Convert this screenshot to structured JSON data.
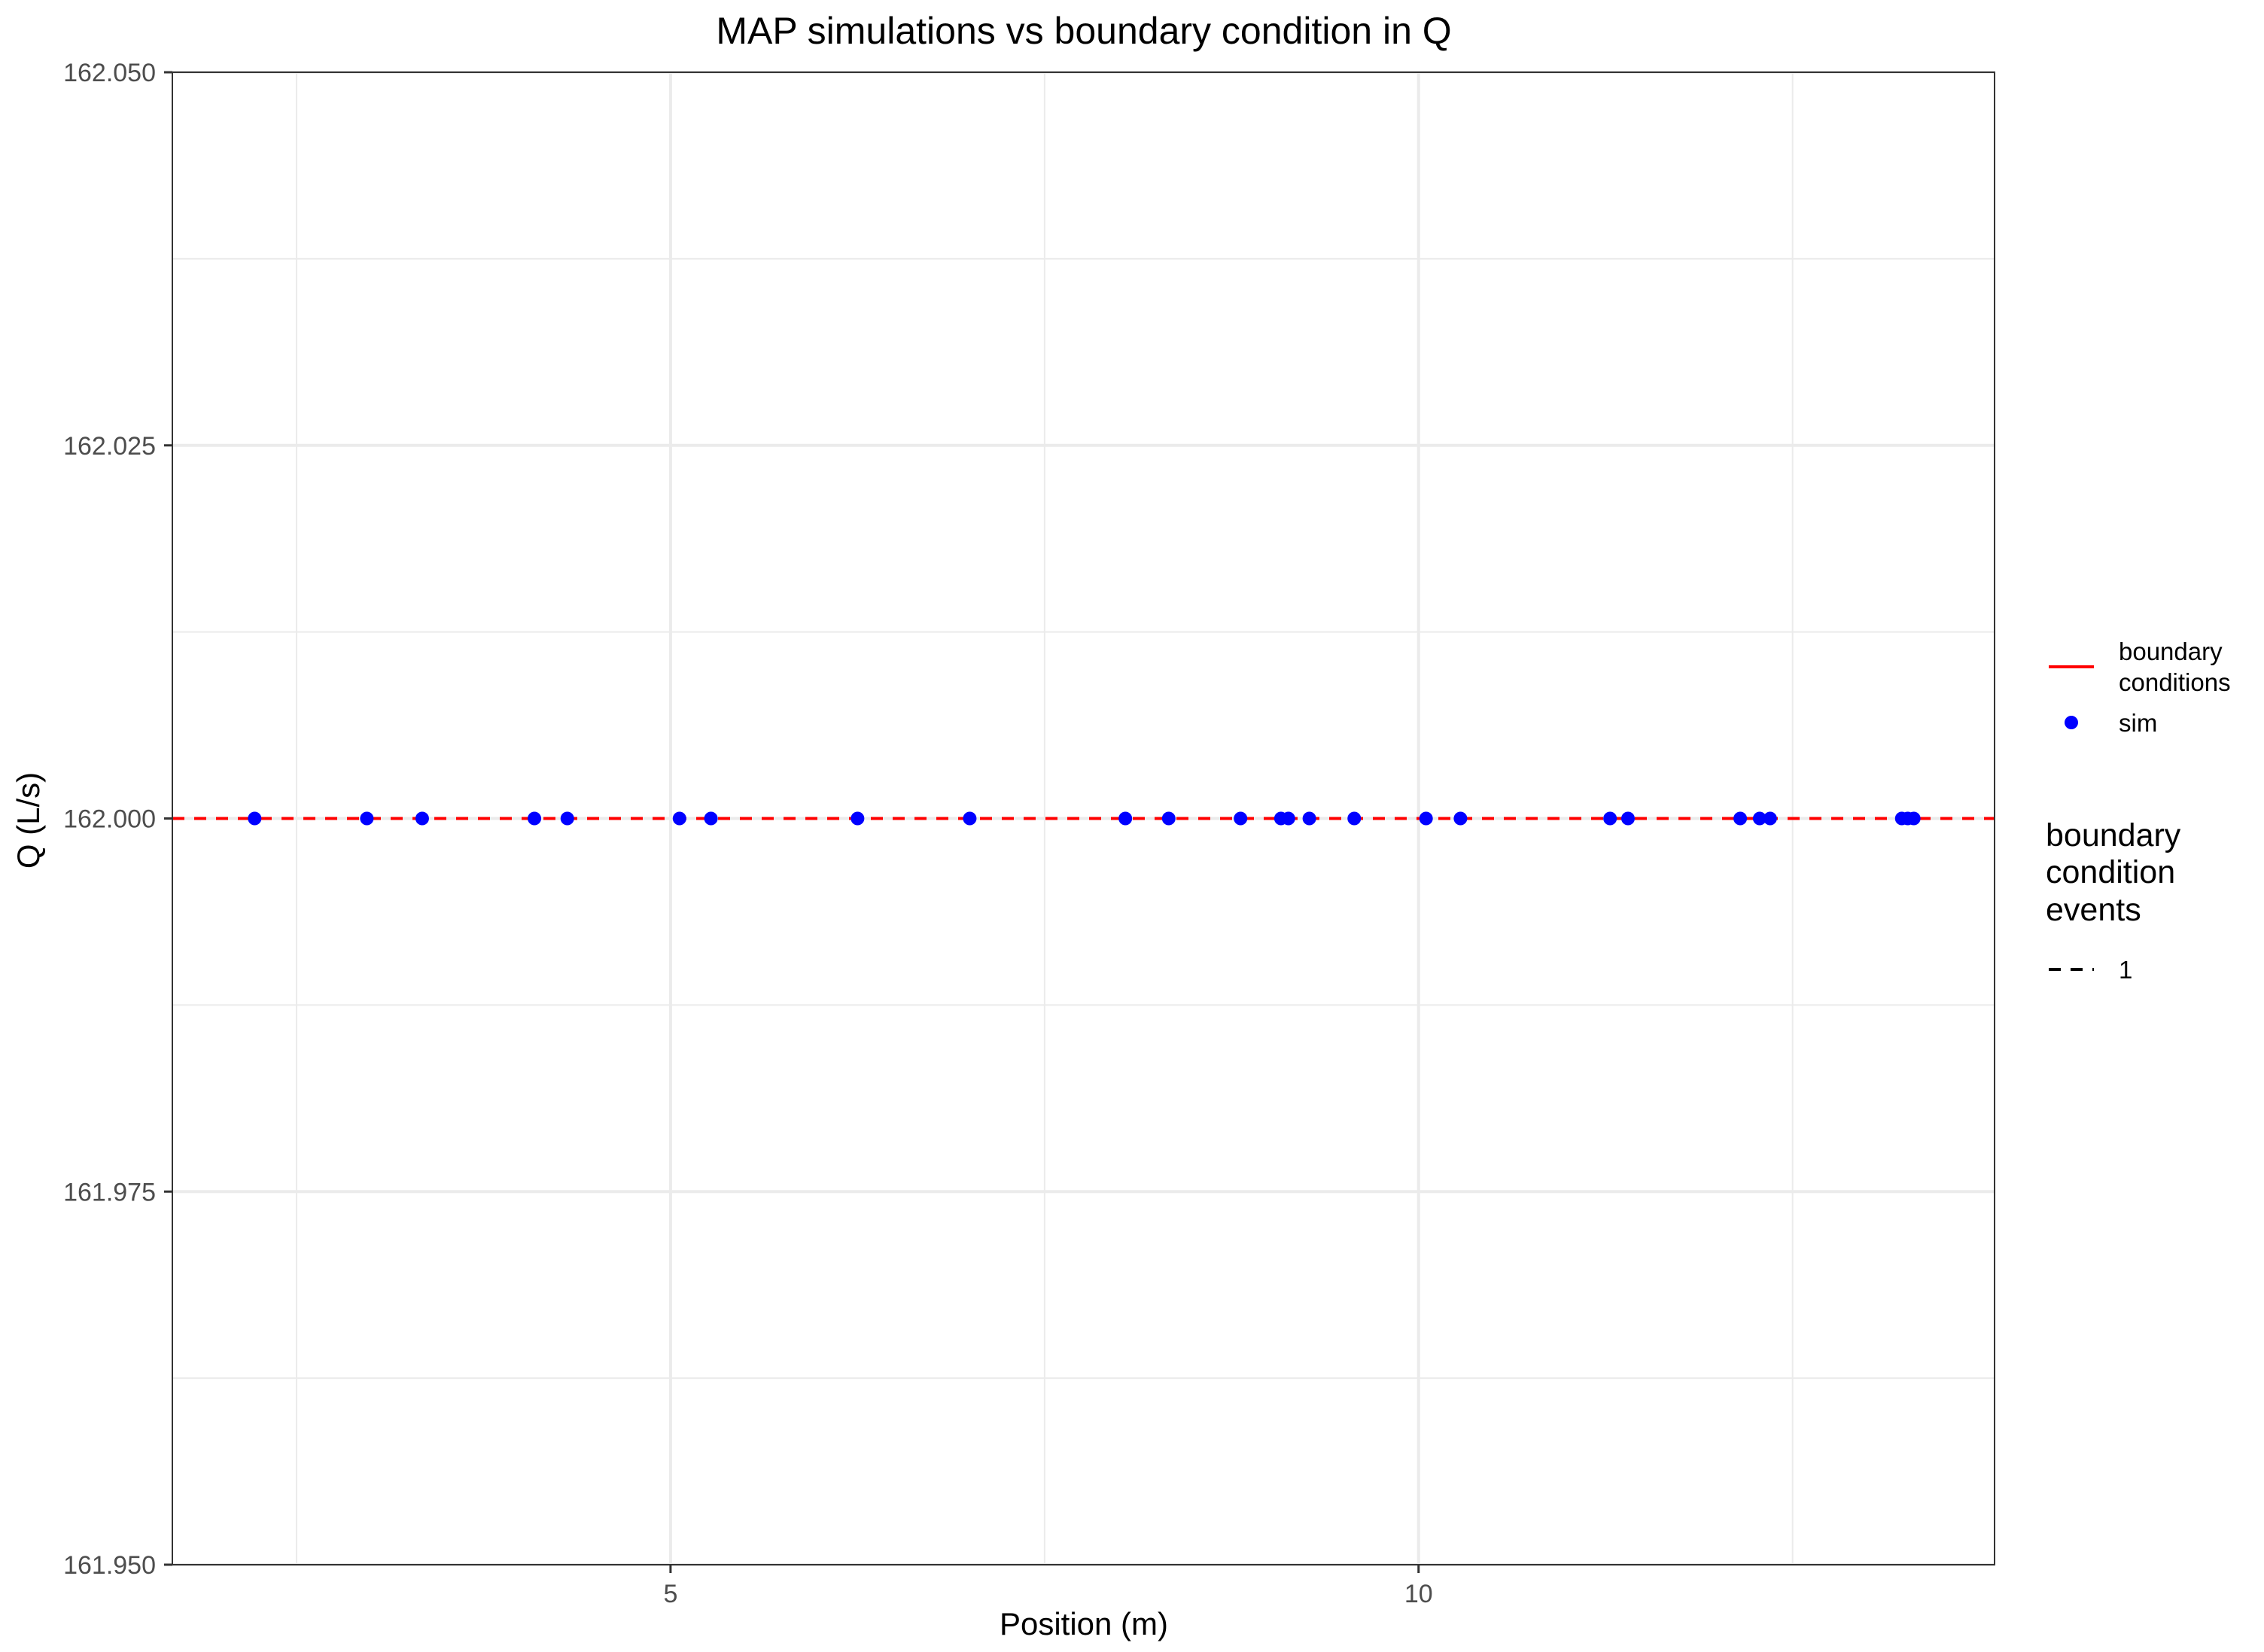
{
  "chart_data": {
    "type": "scatter",
    "title": "MAP simulations vs boundary condition in Q",
    "xlabel": "Position (m)",
    "ylabel": "Q (L/s)",
    "xlim": [
      1.67,
      13.85
    ],
    "ylim": [
      161.95,
      162.05
    ],
    "x_ticks": [
      5,
      10
    ],
    "x_tick_labels": [
      "5",
      "10"
    ],
    "y_ticks": [
      161.95,
      161.975,
      162.0,
      162.025,
      162.05
    ],
    "y_tick_labels": [
      "161.950",
      "161.975",
      "162.000",
      "162.025",
      "162.050"
    ],
    "grid": true,
    "series": [
      {
        "name": "sim",
        "kind": "points",
        "color": "#0000ff",
        "x": [
          2.22,
          2.97,
          3.34,
          4.09,
          4.31,
          5.06,
          5.27,
          6.25,
          7.0,
          8.04,
          8.33,
          8.81,
          9.08,
          9.13,
          9.27,
          9.57,
          10.05,
          10.28,
          11.28,
          11.4,
          12.15,
          12.28,
          12.35,
          13.23,
          13.27,
          13.31
        ],
        "y": [
          162.0,
          162.0,
          162.0,
          162.0,
          162.0,
          162.0,
          162.0,
          162.0,
          162.0,
          162.0,
          162.0,
          162.0,
          162.0,
          162.0,
          162.0,
          162.0,
          162.0,
          162.0,
          162.0,
          162.0,
          162.0,
          162.0,
          162.0,
          162.0,
          162.0,
          162.0
        ]
      },
      {
        "name": "boundary conditions",
        "kind": "hline",
        "color": "#ff0000",
        "linetype": "dashed",
        "y": 162.0
      }
    ],
    "legend": {
      "placement": "right",
      "colour_items": [
        {
          "label_line1": "boundary",
          "label_line2": "conditions",
          "symbol": "line",
          "color": "#ff0000"
        },
        {
          "label_line1": "sim",
          "symbol": "point",
          "color": "#0000ff"
        }
      ],
      "linetype_title_line1": "boundary",
      "linetype_title_line2": "condition",
      "linetype_title_line3": "events",
      "linetype_items": [
        {
          "label": "1",
          "symbol": "dashed-line",
          "color": "#000000"
        }
      ]
    }
  }
}
